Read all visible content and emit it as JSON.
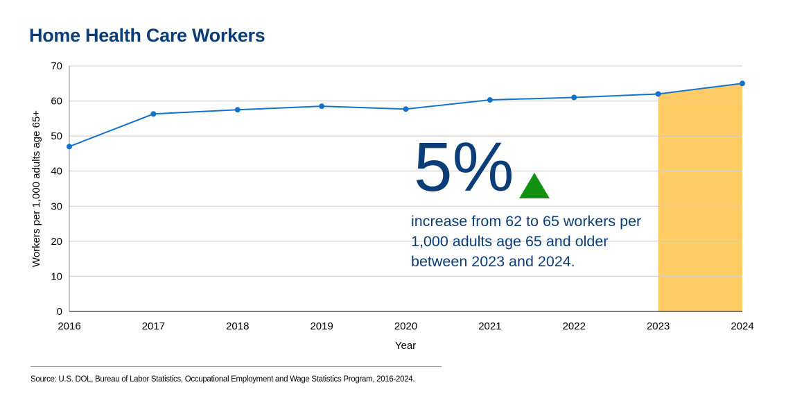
{
  "chart_data": {
    "type": "line",
    "title": "Home Health Care Workers",
    "xlabel": "Year",
    "ylabel": "Workers per 1,000 adults age 65+",
    "x": [
      "2016",
      "2017",
      "2018",
      "2019",
      "2020",
      "2021",
      "2022",
      "2023",
      "2024"
    ],
    "series": [
      {
        "values": [
          47,
          56.3,
          57.5,
          58.5,
          57.7,
          60.3,
          61,
          62,
          65
        ]
      }
    ],
    "ylim": [
      0,
      70
    ],
    "yticks": [
      0,
      10,
      20,
      30,
      40,
      50,
      60,
      70
    ],
    "grid": "horizontal",
    "highlight_range": [
      "2023",
      "2024"
    ],
    "colors": {
      "line": "#1472cc",
      "highlight": "#ffcc66",
      "grid": "#cccccc",
      "title": "#0b3d78",
      "arrow": "#129012"
    }
  },
  "callout": {
    "big_value": "5%",
    "arrow_icon": "up-triangle-icon",
    "text": "increase from 62 to 65 workers per 1,000 adults age 65 and older between 2023 and 2024."
  },
  "source": "Source: U.S. DOL, Bureau of Labor Statistics, Occupational Employment and Wage Statistics Program, 2016-2024."
}
